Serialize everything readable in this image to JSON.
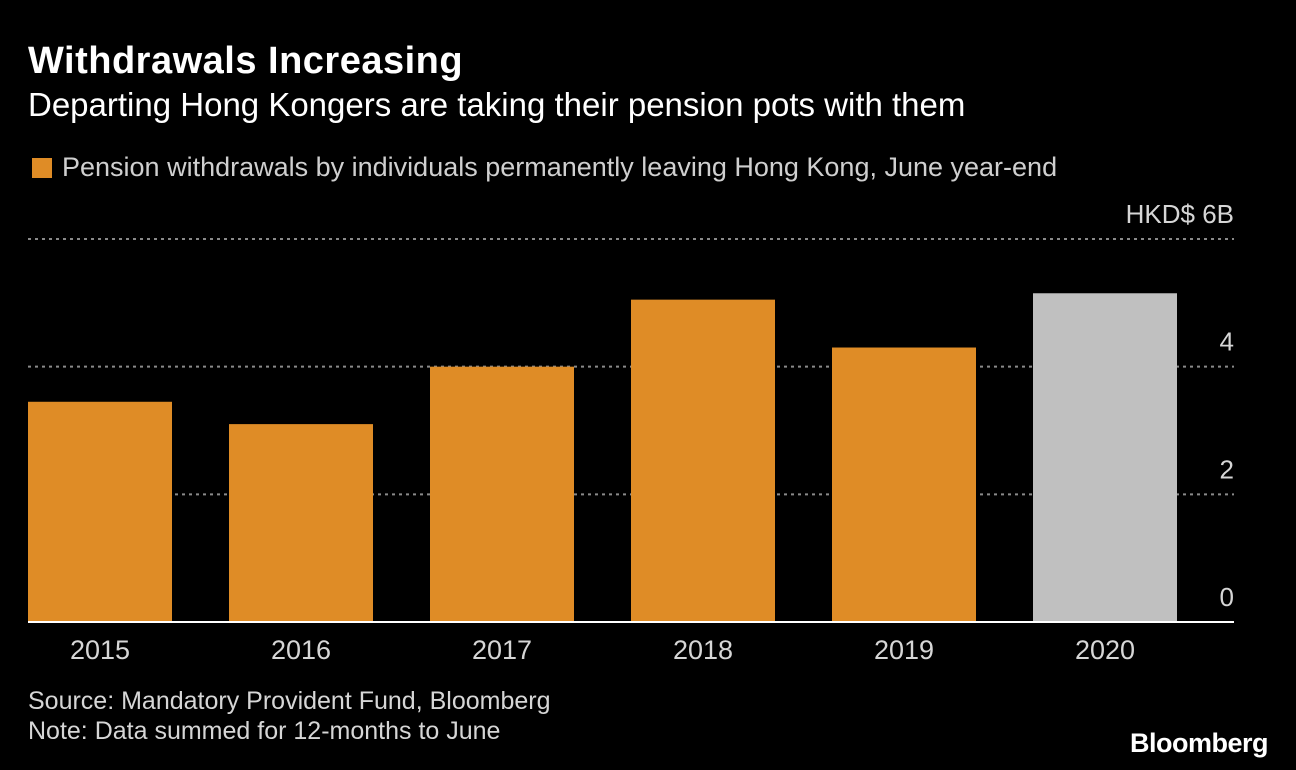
{
  "header": {
    "title": "Withdrawals Increasing",
    "subtitle": "Departing Hong Kongers are taking their pension pots with them"
  },
  "legend": {
    "label": "Pension withdrawals by individuals permanently leaving Hong Kong, June year-end",
    "color": "#df8c26"
  },
  "footer": {
    "source": "Source: Mandatory Provident Fund, Bloomberg",
    "note": "Note: Data summed for 12-months to June",
    "logo": "Bloomberg"
  },
  "chart_data": {
    "type": "bar",
    "categories": [
      "2015",
      "2016",
      "2017",
      "2018",
      "2019",
      "2020"
    ],
    "series": [
      {
        "name": "Pension withdrawals by individuals permanently leaving Hong Kong, June year-end",
        "values": [
          3.45,
          3.1,
          4.0,
          5.05,
          4.3,
          5.15
        ]
      }
    ],
    "bar_colors": [
      "#df8c26",
      "#df8c26",
      "#df8c26",
      "#df8c26",
      "#df8c26",
      "#c0c0c0"
    ],
    "ylim": [
      0,
      6
    ],
    "yticks": [
      0,
      2,
      4,
      6
    ],
    "ytick_labels": [
      "0",
      "2",
      "4",
      "HKD$ 6B"
    ],
    "ylabel": "",
    "xlabel": "",
    "grid": true,
    "grid_color": "#8a8a8a",
    "axis_color": "#ffffff"
  }
}
